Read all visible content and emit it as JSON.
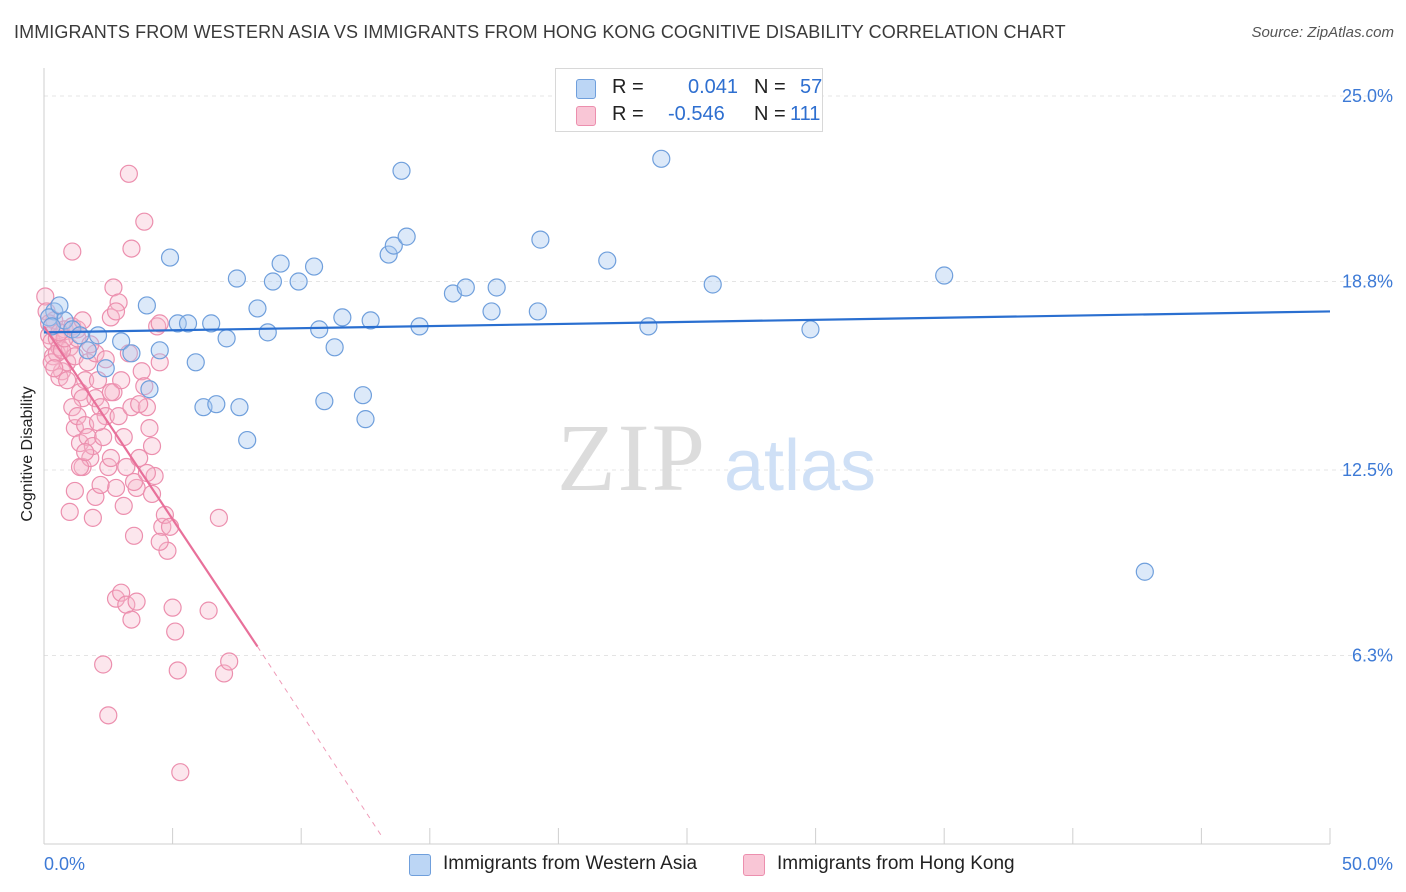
{
  "title": "IMMIGRANTS FROM WESTERN ASIA VS IMMIGRANTS FROM HONG KONG COGNITIVE DISABILITY CORRELATION CHART",
  "source": "Source: ZipAtlas.com",
  "watermark": {
    "zip": "ZIP",
    "atlas": "atlas"
  },
  "legend": {
    "series1": {
      "r_label": "R = ",
      "r_value": "0.041",
      "n_label": "N = ",
      "n_value": "57"
    },
    "series2": {
      "r_label": "R = ",
      "r_value": "-0.546",
      "n_label": "N = ",
      "n_value": "111"
    }
  },
  "colors": {
    "blue_fill": "#a8c8f0",
    "blue_stroke": "#6f9fdc",
    "blue_line": "#2a6fd0",
    "pink_fill": "#f7b6cb",
    "pink_stroke": "#ec8fae",
    "pink_line": "#e8709a",
    "grid": "#e4e4e4",
    "tick_label": "#3d7ad6"
  },
  "chart_data": {
    "type": "scatter",
    "title": "IMMIGRANTS FROM WESTERN ASIA VS IMMIGRANTS FROM HONG KONG COGNITIVE DISABILITY CORRELATION CHART",
    "xlabel": "",
    "ylabel": "Cognitive Disability",
    "xlim": [
      0,
      50
    ],
    "ylim": [
      0,
      25
    ],
    "x_tick_labels": [
      "0.0%",
      "50.0%"
    ],
    "y_ticks": [
      6.3,
      12.5,
      18.8,
      25.0
    ],
    "y_tick_labels": [
      "6.3%",
      "12.5%",
      "18.8%",
      "25.0%"
    ],
    "series": [
      {
        "name": "Immigrants from Western Asia",
        "color": "blue",
        "trend": {
          "x": [
            0,
            50
          ],
          "y": [
            17.1,
            17.8
          ]
        },
        "points": [
          [
            0.4,
            17.8
          ],
          [
            0.8,
            17.5
          ],
          [
            1.1,
            17.2
          ],
          [
            1.4,
            17.0
          ],
          [
            1.7,
            16.5
          ],
          [
            2.1,
            17.0
          ],
          [
            2.4,
            15.9
          ],
          [
            3.0,
            16.8
          ],
          [
            3.4,
            16.4
          ],
          [
            4.1,
            15.2
          ],
          [
            4.5,
            16.5
          ],
          [
            4.0,
            18.0
          ],
          [
            4.9,
            19.6
          ],
          [
            5.2,
            17.4
          ],
          [
            5.6,
            17.4
          ],
          [
            5.9,
            16.1
          ],
          [
            6.2,
            14.6
          ],
          [
            6.5,
            17.4
          ],
          [
            6.7,
            14.7
          ],
          [
            7.1,
            16.9
          ],
          [
            7.5,
            18.9
          ],
          [
            7.6,
            14.6
          ],
          [
            7.9,
            13.5
          ],
          [
            8.3,
            17.9
          ],
          [
            8.7,
            17.1
          ],
          [
            8.9,
            18.8
          ],
          [
            9.2,
            19.4
          ],
          [
            9.9,
            18.8
          ],
          [
            10.5,
            19.3
          ],
          [
            10.7,
            17.2
          ],
          [
            10.9,
            14.8
          ],
          [
            11.3,
            16.6
          ],
          [
            11.6,
            17.6
          ],
          [
            12.7,
            17.5
          ],
          [
            12.4,
            15.0
          ],
          [
            12.5,
            14.2
          ],
          [
            13.4,
            19.7
          ],
          [
            13.6,
            20.0
          ],
          [
            14.1,
            20.3
          ],
          [
            13.9,
            22.5
          ],
          [
            14.6,
            17.3
          ],
          [
            15.9,
            18.4
          ],
          [
            16.4,
            18.6
          ],
          [
            17.4,
            17.8
          ],
          [
            17.6,
            18.6
          ],
          [
            19.2,
            17.8
          ],
          [
            19.3,
            20.2
          ],
          [
            21.9,
            19.5
          ],
          [
            23.5,
            17.3
          ],
          [
            24.0,
            22.9
          ],
          [
            26.0,
            18.7
          ],
          [
            29.8,
            17.2
          ],
          [
            35.0,
            19.0
          ],
          [
            42.8,
            9.1
          ],
          [
            0.2,
            17.6
          ],
          [
            0.3,
            17.3
          ],
          [
            0.6,
            18.0
          ]
        ]
      },
      {
        "name": "Immigrants from Hong Kong",
        "color": "pink",
        "trend": {
          "x": [
            0,
            8.3
          ],
          "y": [
            17.3,
            6.6
          ]
        },
        "trend_dashed": {
          "x": [
            8.3,
            13.1
          ],
          "y": [
            6.6,
            0.3
          ]
        },
        "points": [
          [
            0.05,
            18.3
          ],
          [
            0.1,
            17.8
          ],
          [
            0.2,
            17.0
          ],
          [
            0.3,
            16.8
          ],
          [
            0.35,
            16.3
          ],
          [
            0.4,
            17.5
          ],
          [
            0.5,
            16.9
          ],
          [
            0.6,
            16.6
          ],
          [
            0.7,
            15.8
          ],
          [
            0.8,
            17.2
          ],
          [
            0.9,
            16.1
          ],
          [
            0.5,
            16.4
          ],
          [
            0.6,
            15.6
          ],
          [
            1.0,
            16.6
          ],
          [
            1.1,
            17.3
          ],
          [
            1.2,
            16.3
          ],
          [
            1.3,
            16.9
          ],
          [
            1.4,
            15.1
          ],
          [
            1.5,
            14.9
          ],
          [
            1.6,
            15.5
          ],
          [
            1.7,
            16.1
          ],
          [
            1.1,
            14.6
          ],
          [
            1.2,
            13.9
          ],
          [
            1.3,
            14.3
          ],
          [
            1.4,
            13.4
          ],
          [
            1.5,
            12.6
          ],
          [
            1.6,
            14.0
          ],
          [
            1.7,
            13.6
          ],
          [
            1.8,
            12.9
          ],
          [
            1.9,
            13.3
          ],
          [
            2.0,
            14.9
          ],
          [
            2.1,
            15.5
          ],
          [
            2.2,
            14.6
          ],
          [
            2.3,
            13.6
          ],
          [
            2.4,
            14.3
          ],
          [
            2.5,
            12.6
          ],
          [
            2.6,
            12.9
          ],
          [
            2.7,
            15.1
          ],
          [
            2.8,
            11.9
          ],
          [
            2.9,
            14.3
          ],
          [
            3.0,
            15.5
          ],
          [
            3.1,
            13.6
          ],
          [
            3.2,
            12.6
          ],
          [
            3.3,
            16.4
          ],
          [
            3.4,
            14.6
          ],
          [
            3.5,
            10.3
          ],
          [
            3.6,
            11.9
          ],
          [
            3.7,
            12.9
          ],
          [
            3.8,
            15.8
          ],
          [
            3.9,
            15.3
          ],
          [
            4.0,
            14.6
          ],
          [
            4.1,
            13.9
          ],
          [
            4.2,
            13.3
          ],
          [
            4.3,
            12.3
          ],
          [
            4.4,
            17.3
          ],
          [
            4.5,
            16.1
          ],
          [
            4.6,
            10.6
          ],
          [
            4.7,
            11.0
          ],
          [
            4.8,
            9.8
          ],
          [
            4.9,
            10.6
          ],
          [
            5.0,
            7.9
          ],
          [
            5.1,
            7.1
          ],
          [
            5.2,
            5.8
          ],
          [
            1.9,
            10.9
          ],
          [
            2.0,
            11.6
          ],
          [
            2.2,
            12.0
          ],
          [
            2.3,
            6.0
          ],
          [
            2.5,
            4.3
          ],
          [
            2.8,
            8.2
          ],
          [
            3.0,
            8.4
          ],
          [
            3.2,
            8.0
          ],
          [
            3.4,
            7.5
          ],
          [
            3.6,
            8.1
          ],
          [
            1.0,
            11.1
          ],
          [
            1.2,
            11.8
          ],
          [
            1.4,
            12.6
          ],
          [
            2.7,
            18.6
          ],
          [
            2.9,
            18.1
          ],
          [
            3.3,
            22.4
          ],
          [
            3.4,
            19.9
          ],
          [
            3.9,
            20.8
          ],
          [
            2.6,
            17.6
          ],
          [
            2.8,
            17.8
          ],
          [
            4.5,
            17.4
          ],
          [
            1.1,
            19.8
          ],
          [
            0.3,
            16.1
          ],
          [
            0.4,
            15.9
          ],
          [
            0.7,
            16.5
          ],
          [
            0.9,
            15.5
          ],
          [
            0.8,
            16.9
          ],
          [
            1.3,
            17.2
          ],
          [
            1.5,
            17.5
          ],
          [
            2.0,
            16.4
          ],
          [
            2.4,
            16.2
          ],
          [
            2.1,
            14.1
          ],
          [
            3.1,
            11.3
          ],
          [
            3.5,
            12.1
          ],
          [
            4.0,
            12.4
          ],
          [
            4.2,
            11.7
          ],
          [
            4.5,
            10.1
          ],
          [
            6.4,
            7.8
          ],
          [
            7.0,
            5.7
          ],
          [
            5.3,
            2.4
          ],
          [
            6.8,
            10.9
          ],
          [
            7.2,
            6.1
          ],
          [
            0.2,
            17.4
          ],
          [
            0.6,
            17.1
          ],
          [
            1.8,
            16.7
          ],
          [
            2.6,
            15.1
          ],
          [
            3.7,
            14.7
          ],
          [
            1.6,
            13.1
          ]
        ]
      }
    ]
  },
  "bottom_legend": {
    "series1": "Immigrants from Western Asia",
    "series2": "Immigrants from Hong Kong"
  },
  "x_axis": {
    "left_label": "0.0%",
    "right_label": "50.0%"
  }
}
